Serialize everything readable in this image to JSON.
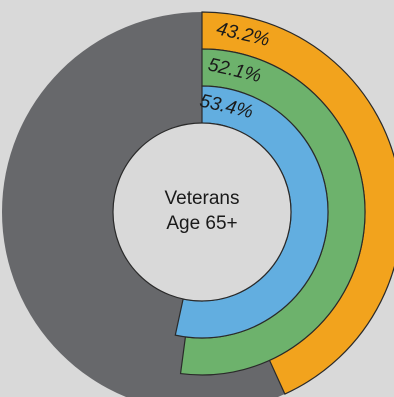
{
  "chart_data": {
    "type": "pie",
    "center_label": [
      "Veterans",
      "Age 65+"
    ],
    "series": [
      {
        "label": "43.2%",
        "value": 43.2,
        "color": "#f2a31d"
      },
      {
        "label": "52.1%",
        "value": 52.1,
        "color": "#6db26c"
      },
      {
        "label": "53.4%",
        "value": 53.4,
        "color": "#62aee0"
      }
    ],
    "remainder_color": "#67686b",
    "background_color": "#d9d9d9",
    "center_color": "#d9d9d9",
    "ring_stroke_color": "#2a2a2a"
  }
}
